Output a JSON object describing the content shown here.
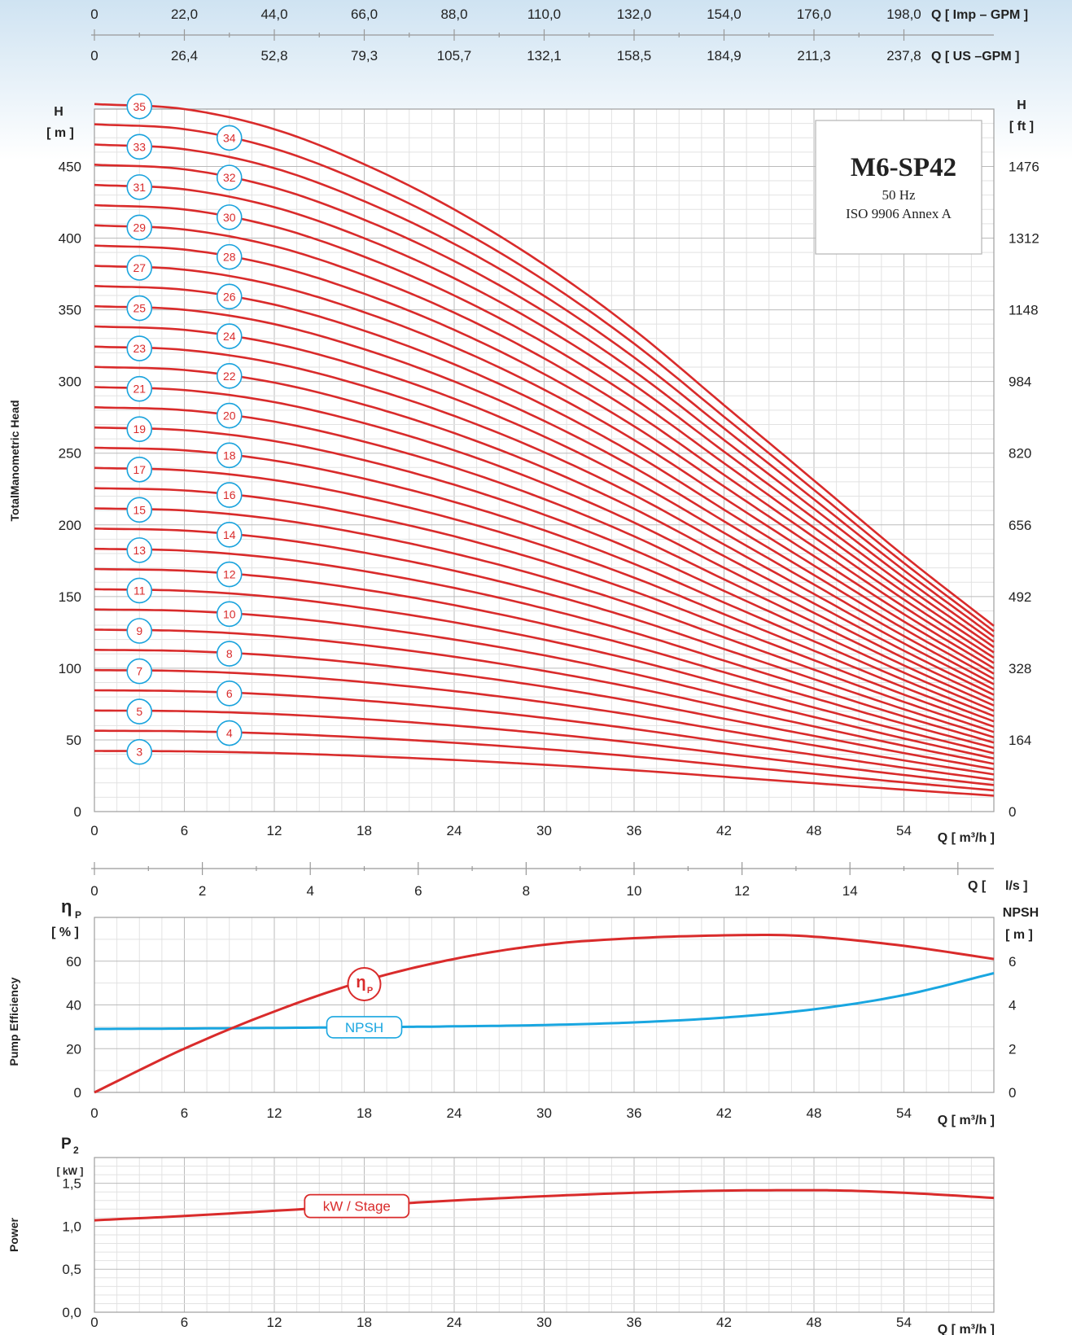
{
  "colors": {
    "curve": "#d92b2b",
    "npsh": "#19a6e0",
    "badge_border": "#1aa3dd",
    "grid_major": "#bbbbbb",
    "grid_minor": "#e2e2e2",
    "frame": "#9e9e9e",
    "text": "#222222"
  },
  "info_box": {
    "model": "M6-SP42",
    "frequency": "50 Hz",
    "standard": "ISO 9906 Annex A"
  },
  "top_axes": {
    "imp_label": "Q [ Imp – GPM ]",
    "imp_ticks": [
      "0",
      "22,0",
      "44,0",
      "66,0",
      "88,0",
      "110,0",
      "132,0",
      "154,0",
      "176,0",
      "198,0"
    ],
    "us_label": "Q [  US –GPM ]",
    "us_ticks": [
      "0",
      "26,4",
      "52,8",
      "79,3",
      "105,7",
      "132,1",
      "158,5",
      "184,9",
      "211,3",
      "237,8"
    ]
  },
  "ls_axis": {
    "label_q": "Q [",
    "label_unit": "l/s  ]",
    "ticks": [
      "0",
      "2",
      "4",
      "6",
      "8",
      "10",
      "12",
      "14"
    ]
  },
  "chart_data": [
    {
      "type": "line",
      "name": "head",
      "side_label": "TotalManometric Head",
      "ylabel_main": "H",
      "ylabel_unit": "[ m ]",
      "ylabel_right_main": "H",
      "ylabel_right_unit": "[ ft ]",
      "xlabel": "Q [ m³/h ]",
      "xlim": [
        0,
        60
      ],
      "ylim": [
        0,
        490
      ],
      "x_ticks": [
        "0",
        "6",
        "12",
        "18",
        "24",
        "30",
        "36",
        "42",
        "48",
        "54"
      ],
      "y_ticks": [
        "0",
        "50",
        "100",
        "150",
        "200",
        "250",
        "300",
        "350",
        "400",
        "450"
      ],
      "y_ticks_right": [
        "0",
        "164",
        "328",
        "492",
        "656",
        "820",
        "984",
        "1148",
        "1312",
        "1476"
      ],
      "stages_first": 3,
      "stages_last": 35,
      "per_stage_curve": {
        "x": [
          0,
          6,
          12,
          18,
          24,
          30,
          36,
          42,
          48,
          54,
          60
        ],
        "y": [
          14.1,
          14.0,
          13.6,
          12.9,
          12.0,
          10.9,
          9.6,
          8.1,
          6.6,
          5.1,
          3.7
        ]
      },
      "stage_badges": [
        {
          "stage": 3,
          "x": 3,
          "label": "3"
        },
        {
          "stage": 4,
          "x": 9,
          "label": "4"
        },
        {
          "stage": 5,
          "x": 3,
          "label": "5"
        },
        {
          "stage": 6,
          "x": 9,
          "label": "6"
        },
        {
          "stage": 7,
          "x": 3,
          "label": "7"
        },
        {
          "stage": 8,
          "x": 9,
          "label": "8"
        },
        {
          "stage": 9,
          "x": 3,
          "label": "9"
        },
        {
          "stage": 10,
          "x": 9,
          "label": "10"
        },
        {
          "stage": 11,
          "x": 3,
          "label": "11"
        },
        {
          "stage": 12,
          "x": 9,
          "label": "12"
        },
        {
          "stage": 13,
          "x": 3,
          "label": "13"
        },
        {
          "stage": 14,
          "x": 9,
          "label": "14"
        },
        {
          "stage": 15,
          "x": 3,
          "label": "15"
        },
        {
          "stage": 16,
          "x": 9,
          "label": "16"
        },
        {
          "stage": 17,
          "x": 3,
          "label": "17"
        },
        {
          "stage": 18,
          "x": 9,
          "label": "18"
        },
        {
          "stage": 19,
          "x": 3,
          "label": "19"
        },
        {
          "stage": 20,
          "x": 9,
          "label": "20"
        },
        {
          "stage": 21,
          "x": 3,
          "label": "21"
        },
        {
          "stage": 22,
          "x": 9,
          "label": "22"
        },
        {
          "stage": 23,
          "x": 3,
          "label": "23"
        },
        {
          "stage": 24,
          "x": 9,
          "label": "24"
        },
        {
          "stage": 25,
          "x": 3,
          "label": "25"
        },
        {
          "stage": 26,
          "x": 9,
          "label": "26"
        },
        {
          "stage": 27,
          "x": 3,
          "label": "27"
        },
        {
          "stage": 28,
          "x": 9,
          "label": "28"
        },
        {
          "stage": 29,
          "x": 3,
          "label": "29"
        },
        {
          "stage": 30,
          "x": 9,
          "label": "30"
        },
        {
          "stage": 31,
          "x": 3,
          "label": "31"
        },
        {
          "stage": 32,
          "x": 9,
          "label": "32"
        },
        {
          "stage": 33,
          "x": 3,
          "label": "33"
        },
        {
          "stage": 34,
          "x": 9,
          "label": "34"
        },
        {
          "stage": 35,
          "x": 3,
          "label": "35"
        }
      ]
    },
    {
      "type": "line",
      "name": "efficiency",
      "side_label": "Pump Efficiency",
      "ylabel_main": "η",
      "ylabel_sub": "P",
      "ylabel_unit": "[ % ]",
      "ylabel_right_main": "NPSH",
      "ylabel_right_unit": "[ m ]",
      "xlabel": "Q [ m³/h ]",
      "xlim": [
        0,
        60
      ],
      "ylim": [
        0,
        80
      ],
      "ylim_right": [
        0,
        8
      ],
      "x_ticks": [
        "0",
        "6",
        "12",
        "18",
        "24",
        "30",
        "36",
        "42",
        "48",
        "54"
      ],
      "y_ticks": [
        "0",
        "20",
        "40",
        "60"
      ],
      "y_ticks_right": [
        "0",
        "2",
        "4",
        "6"
      ],
      "series": [
        {
          "name": "η",
          "name_sub": "P",
          "axis": "left",
          "x": [
            0,
            6,
            12,
            18,
            24,
            30,
            36,
            42,
            45,
            48,
            54,
            60
          ],
          "y": [
            0,
            20,
            37,
            51,
            61,
            67.5,
            70.5,
            71.8,
            72,
            71.2,
            67,
            61
          ]
        },
        {
          "name": "NPSH",
          "axis": "right",
          "x": [
            0,
            6,
            12,
            18,
            24,
            30,
            36,
            42,
            48,
            54,
            60
          ],
          "y": [
            2.9,
            2.92,
            2.95,
            2.98,
            3.02,
            3.08,
            3.2,
            3.42,
            3.8,
            4.45,
            5.45
          ]
        }
      ]
    },
    {
      "type": "line",
      "name": "power",
      "side_label": "Power",
      "ylabel_main": "P",
      "ylabel_sub": "2",
      "ylabel_unit": "[ kW ]",
      "xlabel": "Q [ m³/h ]",
      "xlim": [
        0,
        60
      ],
      "ylim": [
        0,
        1.8
      ],
      "x_ticks": [
        "0",
        "6",
        "12",
        "18",
        "24",
        "30",
        "36",
        "42",
        "48",
        "54"
      ],
      "y_ticks": [
        "0,0",
        "0,5",
        "1,0",
        "1,5"
      ],
      "series": [
        {
          "name": "kW / Stage",
          "x": [
            0,
            6,
            12,
            18,
            24,
            30,
            36,
            42,
            48,
            54,
            60
          ],
          "y": [
            1.07,
            1.12,
            1.18,
            1.24,
            1.3,
            1.35,
            1.39,
            1.415,
            1.42,
            1.39,
            1.33
          ]
        }
      ]
    }
  ]
}
